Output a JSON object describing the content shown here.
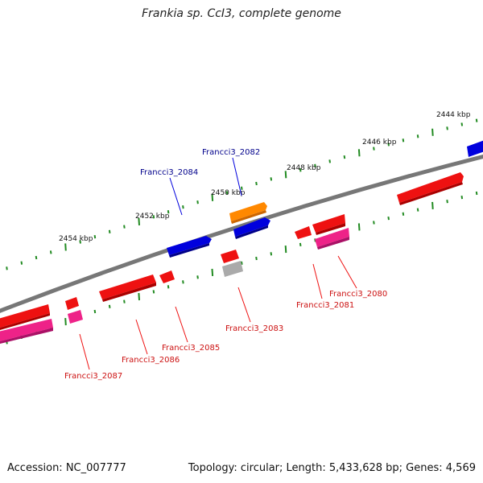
{
  "title": "Frankia sp. CcI3, complete genome",
  "footer": {
    "accession": "Accession: NC_007777",
    "summary": "Topology: circular; Length: 5,433,628 bp; Genes: 4,569"
  },
  "colors": {
    "backbone": "#777777",
    "ticks": "#228b22",
    "tick_label": "#111111",
    "gene_red": "#ee1111",
    "gene_pink": "#ee2288",
    "gene_blue": "#0000dd",
    "gene_orange": "#ff8800",
    "gene_gray": "#aaaaaa",
    "label_blue": "#00008b",
    "label_red": "#cc1111"
  },
  "tick_labels": [
    "2444 kbp",
    "2446 kbp",
    "2448 kbp",
    "2450 kbp",
    "2452 kbp",
    "2454 kbp"
  ],
  "gene_labels": [
    {
      "text": "Francci3_2082",
      "color": "blue"
    },
    {
      "text": "Francci3_2084",
      "color": "blue"
    },
    {
      "text": "Francci3_2080",
      "color": "red"
    },
    {
      "text": "Francci3_2081",
      "color": "red"
    },
    {
      "text": "Francci3_2083",
      "color": "red"
    },
    {
      "text": "Francci3_2085",
      "color": "red"
    },
    {
      "text": "Francci3_2086",
      "color": "red"
    },
    {
      "text": "Francci3_2087",
      "color": "red"
    }
  ]
}
